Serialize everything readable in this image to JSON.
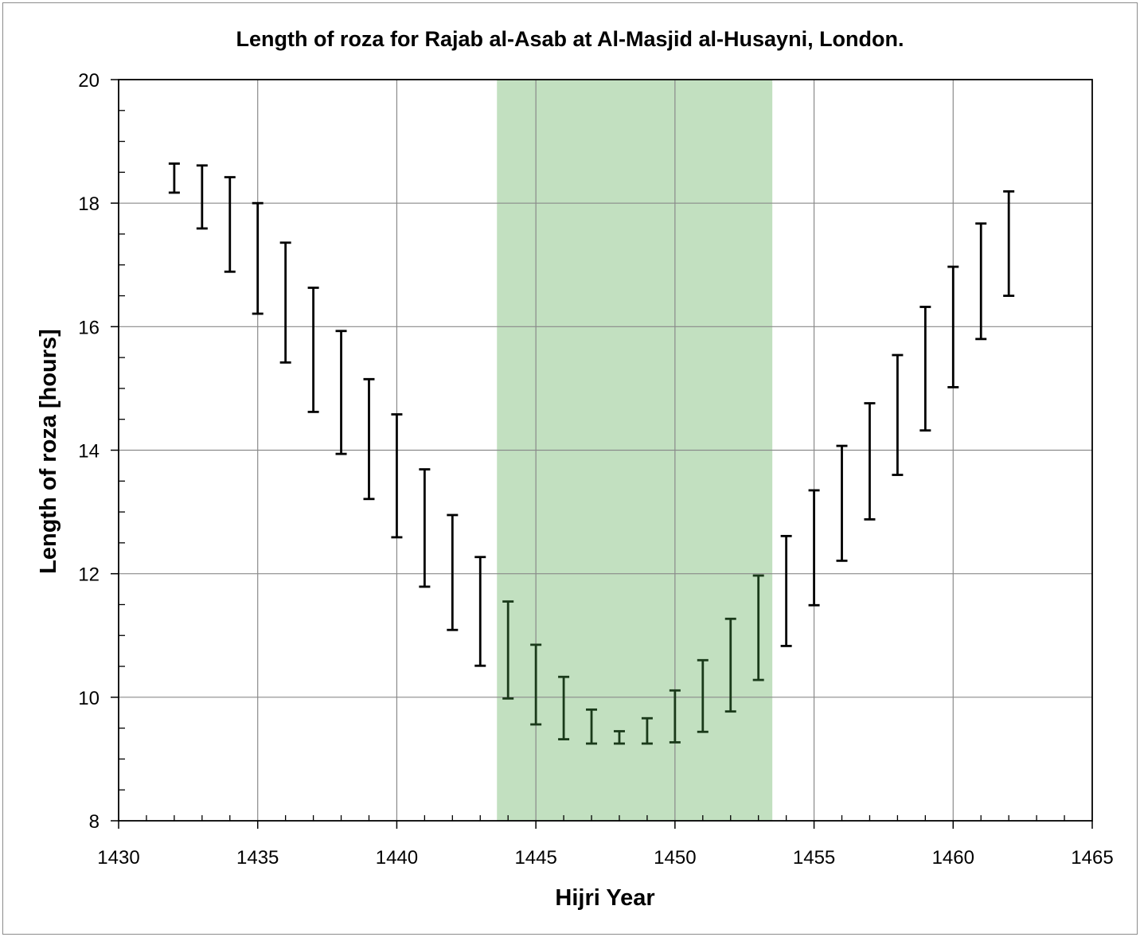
{
  "chart_data": {
    "type": "errorbar",
    "title": "Length of roza for Rajab al-Asab at Al-Masjid al-Husayni, London.",
    "xlabel": "Hijri Year",
    "ylabel": "Length of roza [hours]",
    "xlim": [
      1430,
      1465
    ],
    "ylim": [
      8,
      20
    ],
    "x_ticks": [
      "1430",
      "1435",
      "1440",
      "1445",
      "1450",
      "1455",
      "1460",
      "1465"
    ],
    "y_ticks": [
      "8",
      "10",
      "12",
      "14",
      "16",
      "18",
      "20"
    ],
    "grid": true,
    "highlight_band": {
      "x_start": 1443.6,
      "x_end": 1453.5,
      "color": "#c2e0c0"
    },
    "bar_color": "#000000",
    "bar_color_in_band": "#1a3a1a",
    "series": [
      {
        "points": [
          {
            "x": 1432,
            "low": 18.17,
            "high": 18.64
          },
          {
            "x": 1433,
            "low": 17.59,
            "high": 18.61
          },
          {
            "x": 1434,
            "low": 16.89,
            "high": 18.42
          },
          {
            "x": 1435,
            "low": 16.21,
            "high": 18.0
          },
          {
            "x": 1436,
            "low": 15.42,
            "high": 17.36
          },
          {
            "x": 1437,
            "low": 14.62,
            "high": 16.63
          },
          {
            "x": 1438,
            "low": 13.94,
            "high": 15.93
          },
          {
            "x": 1439,
            "low": 13.21,
            "high": 15.15
          },
          {
            "x": 1440,
            "low": 12.59,
            "high": 14.58
          },
          {
            "x": 1441,
            "low": 11.79,
            "high": 13.69
          },
          {
            "x": 1442,
            "low": 11.09,
            "high": 12.95
          },
          {
            "x": 1443,
            "low": 10.51,
            "high": 12.27
          },
          {
            "x": 1444,
            "low": 9.98,
            "high": 11.55
          },
          {
            "x": 1445,
            "low": 9.56,
            "high": 10.85
          },
          {
            "x": 1446,
            "low": 9.32,
            "high": 10.33
          },
          {
            "x": 1447,
            "low": 9.25,
            "high": 9.8
          },
          {
            "x": 1448,
            "low": 9.25,
            "high": 9.45
          },
          {
            "x": 1449,
            "low": 9.25,
            "high": 9.66
          },
          {
            "x": 1450,
            "low": 9.27,
            "high": 10.11
          },
          {
            "x": 1451,
            "low": 9.44,
            "high": 10.6
          },
          {
            "x": 1452,
            "low": 9.77,
            "high": 11.27
          },
          {
            "x": 1453,
            "low": 10.28,
            "high": 11.97
          },
          {
            "x": 1454,
            "low": 10.83,
            "high": 12.61
          },
          {
            "x": 1455,
            "low": 11.49,
            "high": 13.35
          },
          {
            "x": 1456,
            "low": 12.21,
            "high": 14.07
          },
          {
            "x": 1457,
            "low": 12.88,
            "high": 14.76
          },
          {
            "x": 1458,
            "low": 13.6,
            "high": 15.54
          },
          {
            "x": 1459,
            "low": 14.32,
            "high": 16.32
          },
          {
            "x": 1460,
            "low": 15.02,
            "high": 16.97
          },
          {
            "x": 1461,
            "low": 15.8,
            "high": 17.67
          },
          {
            "x": 1462,
            "low": 16.5,
            "high": 18.19
          }
        ]
      }
    ]
  }
}
